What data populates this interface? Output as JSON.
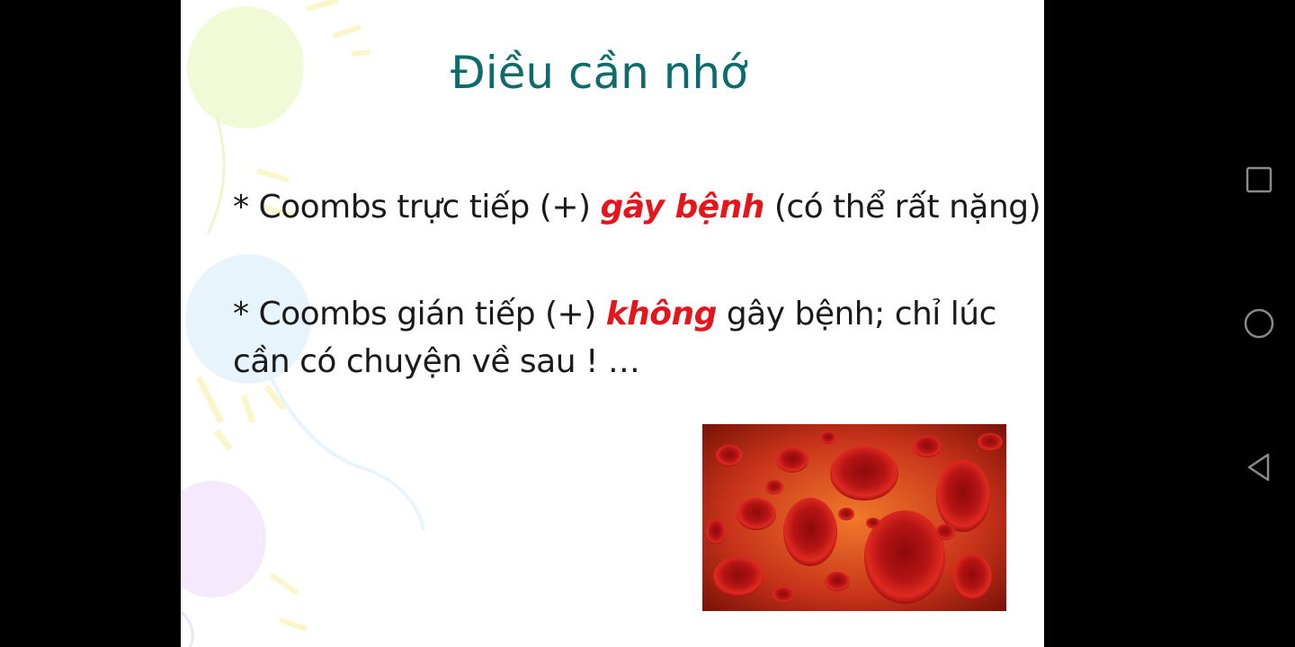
{
  "slide": {
    "title": "Điều cần nhớ",
    "bullet1": {
      "prefix": "* Coombs trực tiếp (+) ",
      "emphasis": "gây bệnh",
      "suffix": " (có thể rất nặng)"
    },
    "bullet2": {
      "prefix": "* Coombs gián tiếp (+) ",
      "emphasis": "không",
      "suffix": " gây bệnh; chỉ lúc",
      "line2": "cần có chuyện về sau ! …"
    },
    "image_description": "red-blood-cells-image"
  },
  "navbar": {
    "icons": [
      "recent-apps-icon",
      "home-icon",
      "back-icon"
    ]
  },
  "colors": {
    "title": "#0e6b6b",
    "emphasis": "#e4161b",
    "background": "#000000"
  }
}
